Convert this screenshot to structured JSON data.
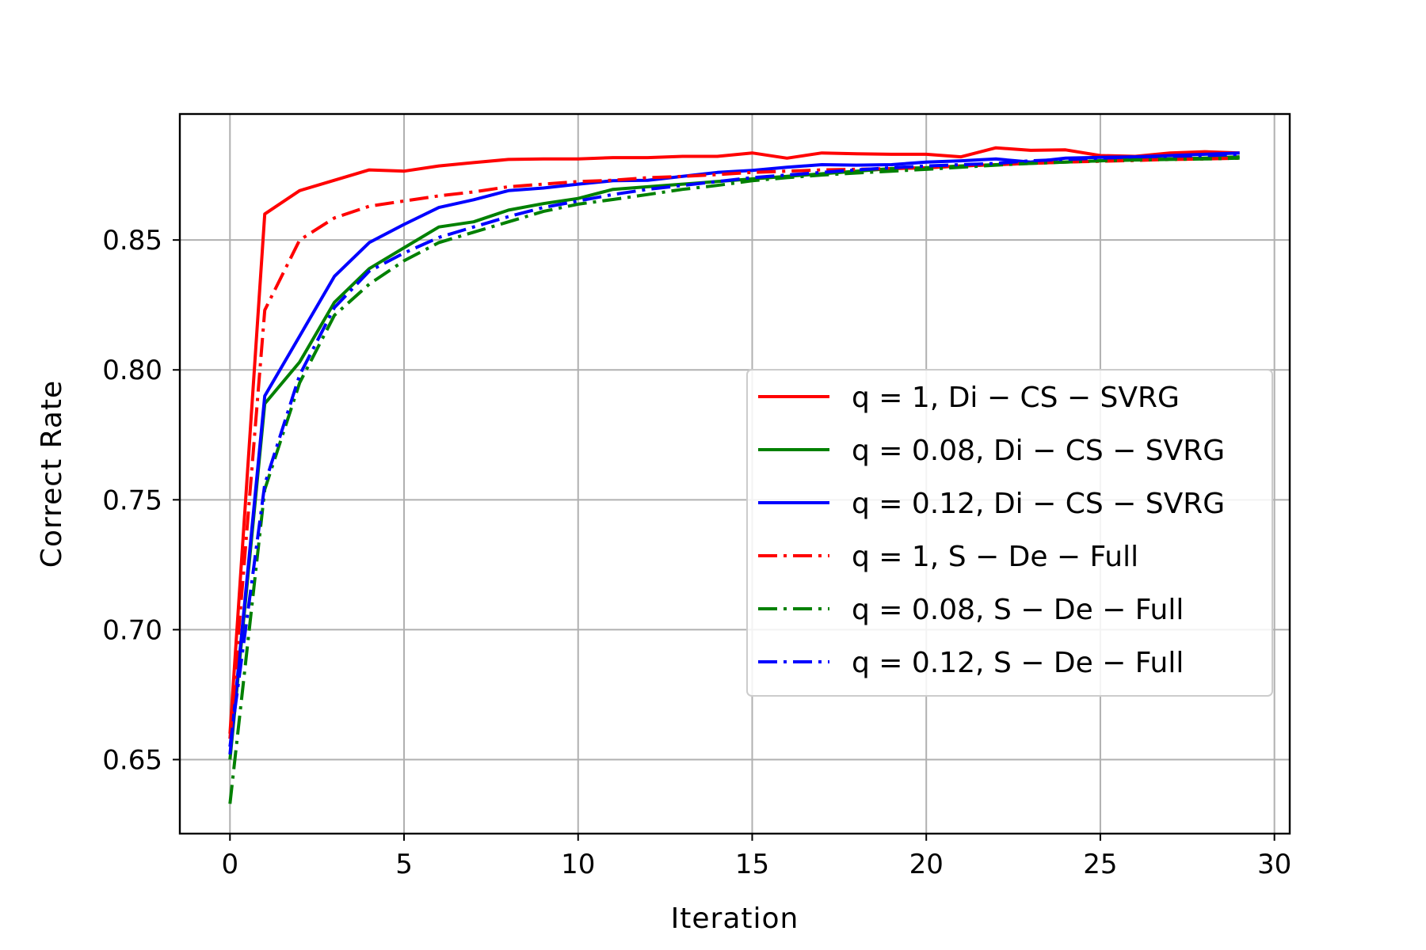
{
  "chart_data": {
    "type": "line",
    "title": "",
    "xlabel": "Iteration",
    "ylabel": "Correct Rate",
    "xlim": [
      -1.44,
      30.44
    ],
    "ylim": [
      0.6215,
      0.8985
    ],
    "xticks": [
      0,
      5,
      10,
      15,
      20,
      25,
      30
    ],
    "xtick_labels": [
      "0",
      "5",
      "10",
      "15",
      "20",
      "25",
      "30"
    ],
    "yticks": [
      0.65,
      0.7,
      0.75,
      0.8,
      0.85
    ],
    "ytick_labels": [
      "0.65",
      "0.70",
      "0.75",
      "0.80",
      "0.85"
    ],
    "grid": true,
    "legend_position": "center-right",
    "x": [
      0,
      1,
      2,
      3,
      4,
      5,
      6,
      7,
      8,
      9,
      10,
      11,
      12,
      13,
      14,
      15,
      16,
      17,
      18,
      19,
      20,
      21,
      22,
      23,
      24,
      25,
      26,
      27,
      28,
      29
    ],
    "series": [
      {
        "name": "q = 1, Di − CS − SVRG",
        "color": "#ff0000",
        "dash": "solid",
        "values": [
          0.66,
          0.86,
          0.869,
          0.873,
          0.877,
          0.8765,
          0.8785,
          0.8798,
          0.881,
          0.8812,
          0.8812,
          0.8817,
          0.8817,
          0.8822,
          0.8822,
          0.8835,
          0.8815,
          0.8835,
          0.8832,
          0.883,
          0.883,
          0.882,
          0.8855,
          0.8845,
          0.8847,
          0.8825,
          0.8822,
          0.8835,
          0.884,
          0.8835
        ]
      },
      {
        "name": "q = 0.08, Di − CS − SVRG",
        "color": "#008000",
        "dash": "solid",
        "values": [
          0.65,
          0.787,
          0.803,
          0.826,
          0.839,
          0.847,
          0.855,
          0.857,
          0.8615,
          0.864,
          0.866,
          0.8695,
          0.8705,
          0.8715,
          0.8725,
          0.8735,
          0.8745,
          0.8755,
          0.8765,
          0.8775,
          0.8778,
          0.8785,
          0.879,
          0.8795,
          0.88,
          0.8805,
          0.881,
          0.8812,
          0.8815,
          0.882
        ]
      },
      {
        "name": "q = 0.12, Di − CS − SVRG",
        "color": "#0000ff",
        "dash": "solid",
        "values": [
          0.652,
          0.79,
          0.813,
          0.836,
          0.849,
          0.856,
          0.8625,
          0.8655,
          0.869,
          0.87,
          0.8715,
          0.8728,
          0.873,
          0.8745,
          0.876,
          0.8768,
          0.878,
          0.879,
          0.8788,
          0.879,
          0.88,
          0.8805,
          0.8812,
          0.88,
          0.8815,
          0.8818,
          0.882,
          0.8825,
          0.883,
          0.8835
        ]
      },
      {
        "name": "q = 1, S − De − Full",
        "color": "#ff0000",
        "dash": "dashdot",
        "values": [
          0.658,
          0.823,
          0.85,
          0.8585,
          0.863,
          0.865,
          0.867,
          0.8685,
          0.8705,
          0.8715,
          0.8725,
          0.873,
          0.874,
          0.8745,
          0.8752,
          0.876,
          0.8765,
          0.877,
          0.8772,
          0.8775,
          0.8778,
          0.8785,
          0.879,
          0.8795,
          0.88,
          0.8803,
          0.8806,
          0.881,
          0.8812,
          0.8815
        ]
      },
      {
        "name": "q = 0.08, S − De − Full",
        "color": "#008000",
        "dash": "dashdot",
        "values": [
          0.633,
          0.754,
          0.795,
          0.821,
          0.833,
          0.842,
          0.849,
          0.853,
          0.857,
          0.861,
          0.8638,
          0.8656,
          0.8675,
          0.8695,
          0.871,
          0.8728,
          0.874,
          0.875,
          0.8758,
          0.8765,
          0.8772,
          0.878,
          0.8788,
          0.8795,
          0.88,
          0.8805,
          0.8808,
          0.881,
          0.8812,
          0.8815
        ]
      },
      {
        "name": "q = 0.12, S − De − Full",
        "color": "#0000ff",
        "dash": "dashdot",
        "values": [
          0.655,
          0.756,
          0.798,
          0.824,
          0.838,
          0.845,
          0.851,
          0.855,
          0.859,
          0.8625,
          0.865,
          0.8675,
          0.8695,
          0.871,
          0.8725,
          0.874,
          0.875,
          0.876,
          0.877,
          0.8778,
          0.8785,
          0.879,
          0.8795,
          0.8805,
          0.881,
          0.8815,
          0.882,
          0.8822,
          0.8825,
          0.883
        ]
      }
    ]
  }
}
